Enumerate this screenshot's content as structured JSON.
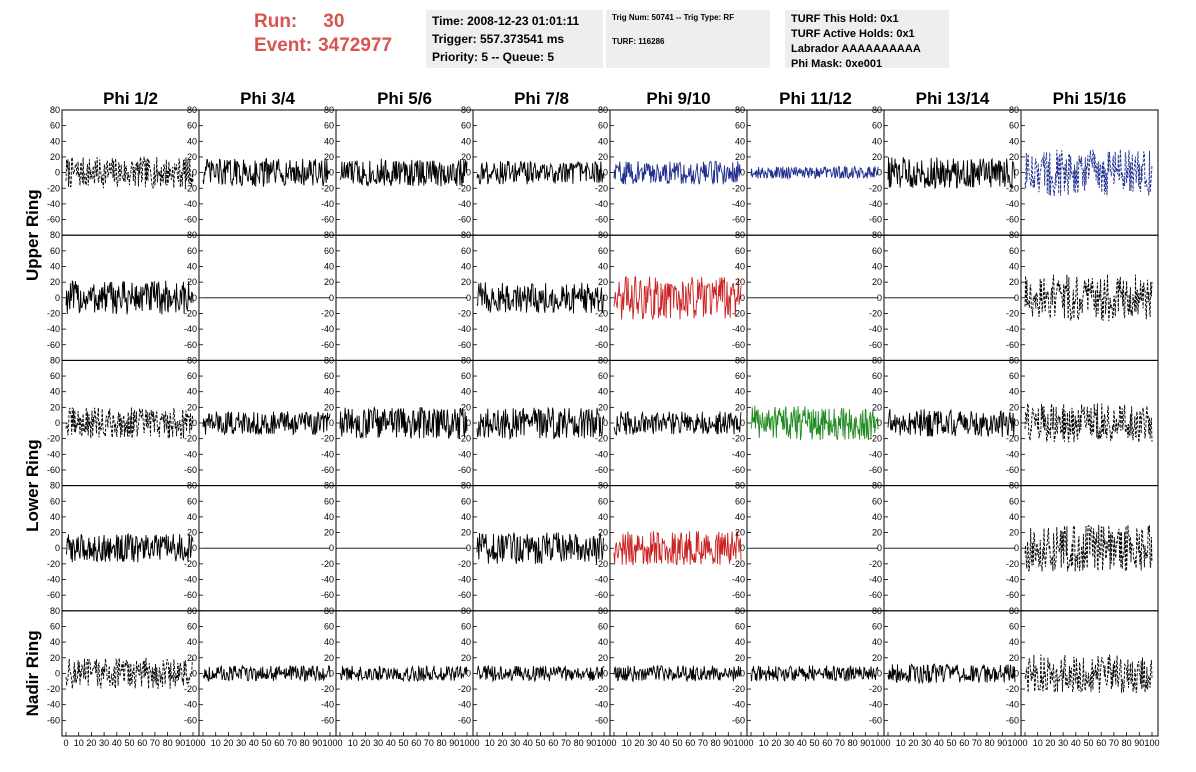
{
  "header": {
    "run_label": "Run:",
    "run_value": "30",
    "event_label": "Event:",
    "event_value": "3472977",
    "time": "Time: 2008-12-23 01:01:11",
    "trigger": "Trigger: 557.373541 ms",
    "priority": "Priority: 5 -- Queue: 5",
    "trig_num": "Trig Num: 50741 -- Trig Type: RF",
    "turf": "TURF: 116286",
    "turf_this_hold": "TURF This Hold: 0x1",
    "turf_active_holds": "TURF Active Holds: 0x1",
    "labrador": "Labrador AAAAAAAAAA",
    "phi_mask": "Phi Mask: 0xe001"
  },
  "chart_data": {
    "type": "line",
    "columns": [
      "Phi 1/2",
      "Phi 3/4",
      "Phi 5/6",
      "Phi 7/8",
      "Phi 9/10",
      "Phi 11/12",
      "Phi 13/14",
      "Phi 15/16"
    ],
    "ring_labels": [
      "Upper Ring",
      "Lower Ring",
      "Nadir Ring"
    ],
    "ylim": [
      -80,
      80
    ],
    "xlim": [
      0,
      100
    ],
    "yticks": [
      "-60",
      "-40",
      "-20",
      "0",
      "20",
      "40",
      "60",
      "80"
    ],
    "xticks": [
      "0",
      "10",
      "20",
      "30",
      "40",
      "50",
      "60",
      "70",
      "80",
      "90",
      "100"
    ],
    "colors": {
      "black": "#000000",
      "blue": "#1f2f8f",
      "red": "#cc2222",
      "green": "#228b22"
    },
    "rows": [
      [
        {
          "amp": 20,
          "dashed": true,
          "color": "black"
        },
        {
          "amp": 18,
          "dashed": false,
          "color": "black"
        },
        {
          "amp": 18,
          "dashed": false,
          "color": "black"
        },
        {
          "amp": 15,
          "dashed": false,
          "color": "black"
        },
        {
          "amp": 15,
          "dashed": false,
          "color": "blue"
        },
        {
          "amp": 8,
          "dashed": false,
          "color": "blue"
        },
        {
          "amp": 20,
          "dashed": false,
          "color": "black"
        },
        {
          "amp": 30,
          "dashed": true,
          "color": "blue"
        }
      ],
      [
        {
          "amp": 22,
          "dashed": false,
          "color": "black"
        },
        {
          "amp": 0,
          "dashed": false,
          "color": "black"
        },
        {
          "amp": 0,
          "dashed": false,
          "color": "black"
        },
        {
          "amp": 20,
          "dashed": false,
          "color": "black"
        },
        {
          "amp": 28,
          "dashed": false,
          "color": "red"
        },
        {
          "amp": 0,
          "dashed": false,
          "color": "black"
        },
        {
          "amp": 0,
          "dashed": false,
          "color": "black"
        },
        {
          "amp": 30,
          "dashed": true,
          "color": "black"
        }
      ],
      [
        {
          "amp": 20,
          "dashed": true,
          "color": "black"
        },
        {
          "amp": 15,
          "dashed": false,
          "color": "black"
        },
        {
          "amp": 20,
          "dashed": false,
          "color": "black"
        },
        {
          "amp": 20,
          "dashed": false,
          "color": "black"
        },
        {
          "amp": 15,
          "dashed": false,
          "color": "black"
        },
        {
          "amp": 22,
          "dashed": false,
          "color": "green"
        },
        {
          "amp": 18,
          "dashed": false,
          "color": "black"
        },
        {
          "amp": 25,
          "dashed": true,
          "color": "black"
        }
      ],
      [
        {
          "amp": 18,
          "dashed": false,
          "color": "black"
        },
        {
          "amp": 0,
          "dashed": false,
          "color": "black"
        },
        {
          "amp": 0,
          "dashed": false,
          "color": "black"
        },
        {
          "amp": 20,
          "dashed": false,
          "color": "black"
        },
        {
          "amp": 22,
          "dashed": false,
          "color": "red"
        },
        {
          "amp": 0,
          "dashed": false,
          "color": "black"
        },
        {
          "amp": 0,
          "dashed": false,
          "color": "black"
        },
        {
          "amp": 30,
          "dashed": true,
          "color": "black"
        }
      ],
      [
        {
          "amp": 20,
          "dashed": true,
          "color": "black"
        },
        {
          "amp": 10,
          "dashed": false,
          "color": "black"
        },
        {
          "amp": 10,
          "dashed": false,
          "color": "black"
        },
        {
          "amp": 10,
          "dashed": false,
          "color": "black"
        },
        {
          "amp": 10,
          "dashed": false,
          "color": "black"
        },
        {
          "amp": 10,
          "dashed": false,
          "color": "black"
        },
        {
          "amp": 12,
          "dashed": false,
          "color": "black"
        },
        {
          "amp": 25,
          "dashed": true,
          "color": "black"
        }
      ]
    ]
  }
}
